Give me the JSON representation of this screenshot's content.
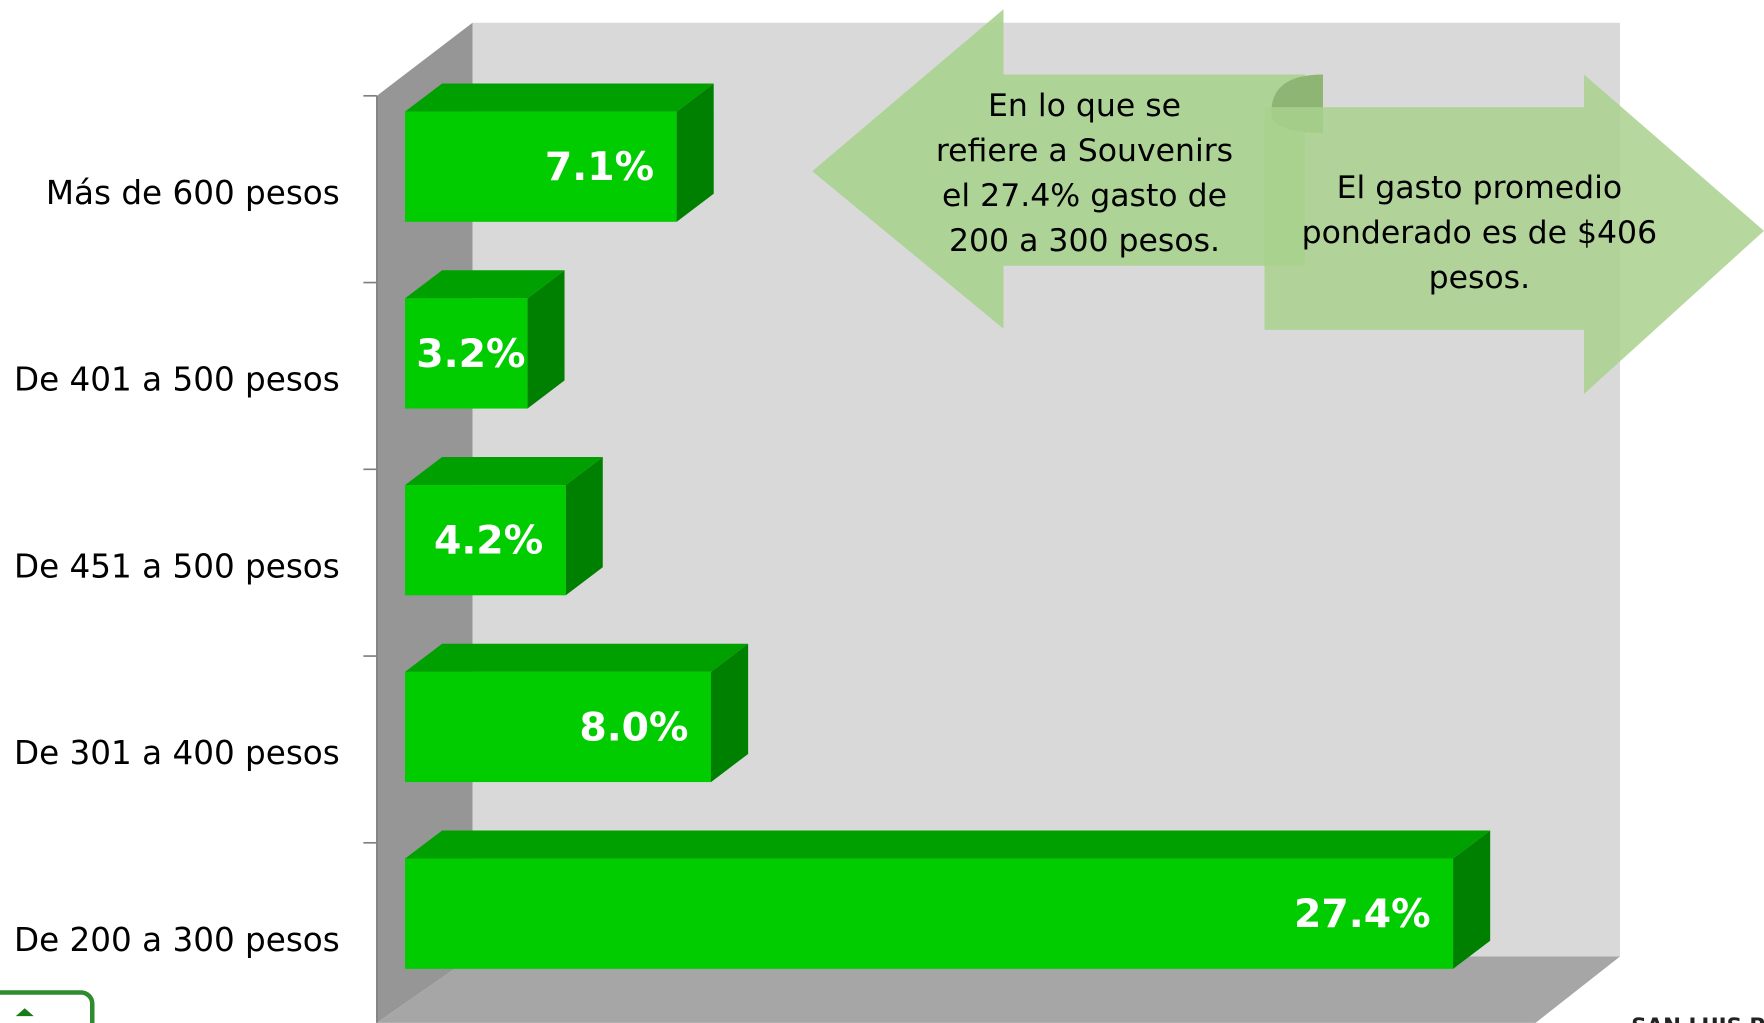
{
  "chart_data": {
    "type": "bar3d_horizontal",
    "categories": [
      "Más de 600 pesos",
      "De 401 a 500 pesos",
      "De 451 a 500 pesos",
      "De 301 a 400 pesos",
      "De 200 a 300 pesos"
    ],
    "values": [
      7.1,
      3.2,
      4.2,
      8.0,
      27.4
    ],
    "value_labels": [
      "7.1%",
      "3.2%",
      "4.2%",
      "8.0%",
      "27.4%"
    ],
    "color": "#00cc00",
    "xlim": [
      0,
      30
    ],
    "annotations": [
      [
        "En lo que se",
        "refiere a Souvenirs",
        "el 27.4% gasto de",
        "200 a 300 pesos."
      ],
      [
        "El gasto promedio",
        "ponderado es de $406",
        "pesos."
      ]
    ],
    "footer": "SAN LUIS PO"
  }
}
